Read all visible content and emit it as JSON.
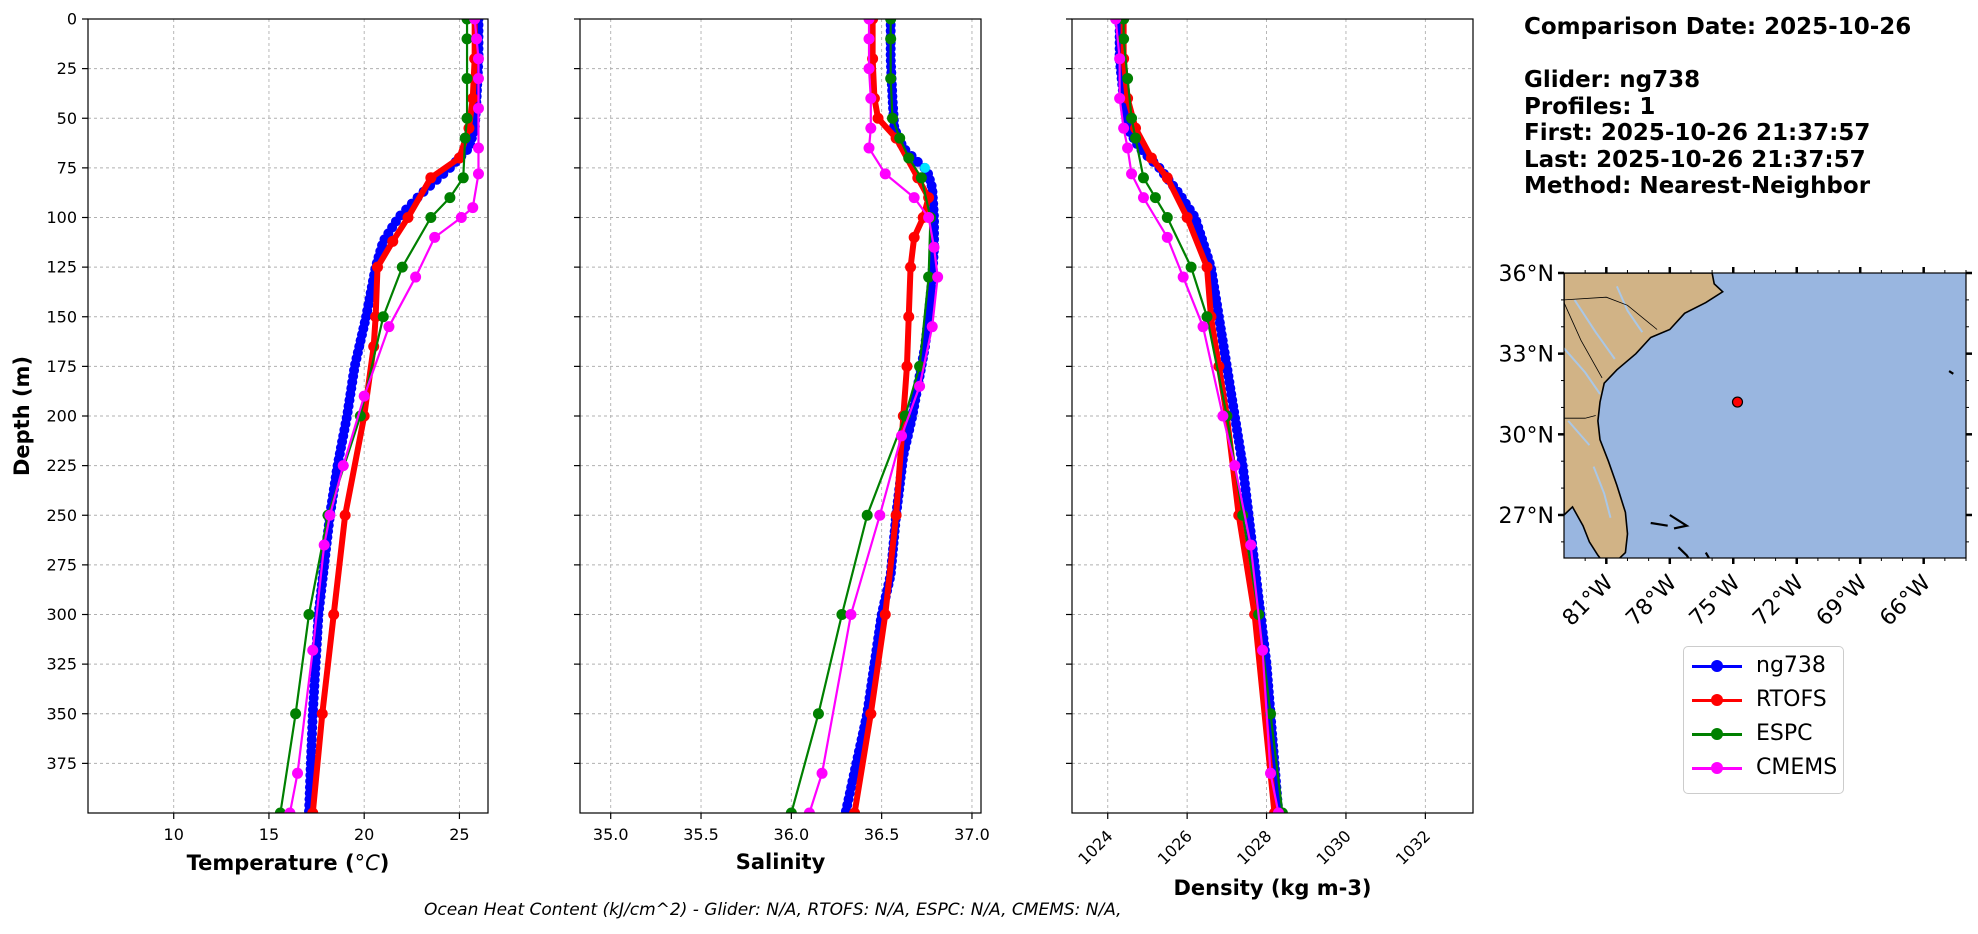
{
  "chart_data": [
    {
      "type": "line",
      "xlabel_main": "Temperature (",
      "xlabel_unit": "°C",
      "xlabel_end": ")",
      "ylabel": "Depth (m)",
      "xlim": [
        5.5,
        26.5
      ],
      "ylim": [
        400,
        0
      ],
      "xticks": [
        10,
        15,
        20,
        25
      ],
      "yticks": [
        0,
        25,
        50,
        75,
        100,
        125,
        150,
        175,
        200,
        225,
        250,
        275,
        300,
        325,
        350,
        375
      ],
      "grid": true,
      "series": [
        {
          "name": "ng738",
          "color": "#0000ff",
          "dense": true,
          "x": [
            26.0,
            26.0,
            25.9,
            25.8,
            25.5,
            24.5,
            23.0,
            21.8,
            21.0,
            20.6,
            20.1,
            19.5,
            19.1,
            18.6,
            18.2,
            17.9,
            17.6,
            17.3,
            17.1
          ],
          "y": [
            0,
            20,
            40,
            55,
            65,
            75,
            88,
            100,
            112,
            125,
            150,
            175,
            200,
            225,
            250,
            275,
            300,
            350,
            400
          ]
        },
        {
          "name": "RTOFS",
          "color": "#ff0000",
          "thick": true,
          "x": [
            25.8,
            25.8,
            25.7,
            25.5,
            25.0,
            23.5,
            22.3,
            21.5,
            20.7,
            20.6,
            20.5,
            20.0,
            19.0,
            18.4,
            17.8,
            17.3
          ],
          "y": [
            0,
            20,
            40,
            55,
            70,
            80,
            100,
            112,
            125,
            150,
            165,
            200,
            250,
            300,
            350,
            400
          ]
        },
        {
          "name": "ESPC",
          "color": "#008000",
          "x": [
            25.4,
            25.4,
            25.4,
            25.4,
            25.3,
            25.2,
            24.5,
            23.5,
            22.0,
            21.0,
            19.8,
            18.1,
            17.1,
            16.4,
            15.6
          ],
          "y": [
            0,
            10,
            30,
            50,
            60,
            80,
            90,
            100,
            125,
            150,
            200,
            250,
            300,
            350,
            400
          ]
        },
        {
          "name": "CMEMS",
          "color": "#ff00ff",
          "x": [
            25.8,
            25.9,
            26.0,
            26.0,
            26.0,
            26.0,
            26.0,
            25.7,
            25.1,
            23.7,
            22.7,
            21.3,
            20.0,
            18.9,
            18.2,
            17.9,
            17.3,
            16.5,
            16.1
          ],
          "y": [
            0,
            10,
            20,
            30,
            45,
            65,
            78,
            95,
            100,
            110,
            130,
            155,
            190,
            225,
            250,
            265,
            318,
            380,
            400
          ]
        }
      ]
    },
    {
      "type": "line",
      "xlabel": "Salinity",
      "xlim": [
        34.83,
        37.05
      ],
      "ylim": [
        400,
        0
      ],
      "xticks": [
        35.0,
        35.5,
        36.0,
        36.5,
        37.0
      ],
      "grid": true,
      "series": [
        {
          "name": "ng738",
          "color": "#0000ff",
          "dense": true,
          "x": [
            36.55,
            36.55,
            36.56,
            36.57,
            36.62,
            36.7,
            36.75,
            36.78,
            36.79,
            36.79,
            36.78,
            36.76,
            36.74,
            36.71,
            36.67,
            36.62,
            36.58,
            36.55,
            36.5,
            36.42,
            36.3
          ],
          "y": [
            0,
            20,
            40,
            55,
            65,
            72,
            76,
            85,
            100,
            115,
            130,
            150,
            165,
            180,
            200,
            220,
            250,
            280,
            300,
            350,
            400
          ]
        },
        {
          "name": "RTOFS",
          "color": "#ff0000",
          "thick": true,
          "x": [
            36.45,
            36.45,
            36.46,
            36.48,
            36.58,
            36.7,
            36.76,
            36.73,
            36.68,
            36.66,
            36.65,
            36.64,
            36.62,
            36.58,
            36.52,
            36.44,
            36.35
          ],
          "y": [
            0,
            20,
            40,
            50,
            60,
            80,
            90,
            100,
            110,
            125,
            150,
            175,
            200,
            250,
            300,
            350,
            400
          ]
        },
        {
          "name": "ESPC",
          "color": "#008000",
          "x": [
            36.55,
            36.55,
            36.55,
            36.56,
            36.6,
            36.65,
            36.72,
            36.77,
            36.76,
            36.71,
            36.63,
            36.42,
            36.28,
            36.15,
            36.0
          ],
          "y": [
            0,
            10,
            30,
            50,
            60,
            70,
            80,
            100,
            130,
            175,
            200,
            250,
            300,
            350,
            400
          ]
        },
        {
          "name": "CMEMS",
          "color": "#ff00ff",
          "x": [
            36.43,
            36.43,
            36.43,
            36.44,
            36.44,
            36.43,
            36.52,
            36.68,
            36.76,
            36.79,
            36.81,
            36.78,
            36.71,
            36.61,
            36.49,
            36.33,
            36.17,
            36.1
          ],
          "y": [
            0,
            10,
            25,
            40,
            55,
            65,
            78,
            90,
            100,
            115,
            130,
            155,
            185,
            210,
            250,
            300,
            380,
            400
          ]
        }
      ],
      "extra_points": [
        {
          "x": 36.74,
          "y": 75,
          "color": "#00e5ff"
        }
      ]
    },
    {
      "type": "line",
      "xlabel": "Density (kg m-3)",
      "xlim": [
        1023.1,
        1033.2
      ],
      "ylim": [
        400,
        0
      ],
      "xticks": [
        1024,
        1026,
        1028,
        1030,
        1032
      ],
      "grid": true,
      "series": [
        {
          "name": "ng738",
          "color": "#0000ff",
          "dense": true,
          "x": [
            1024.3,
            1024.3,
            1024.4,
            1024.5,
            1024.8,
            1025.3,
            1025.8,
            1026.2,
            1026.6,
            1027.0,
            1027.4,
            1027.7,
            1028.0,
            1028.3
          ],
          "y": [
            0,
            20,
            40,
            55,
            65,
            75,
            88,
            100,
            125,
            175,
            225,
            275,
            325,
            400
          ]
        },
        {
          "name": "RTOFS",
          "color": "#ff0000",
          "thick": true,
          "x": [
            1024.4,
            1024.4,
            1024.5,
            1024.7,
            1025.1,
            1025.5,
            1026.0,
            1026.5,
            1026.6,
            1026.8,
            1027.0,
            1027.3,
            1027.7,
            1028.2
          ],
          "y": [
            0,
            20,
            40,
            55,
            70,
            80,
            100,
            125,
            150,
            175,
            200,
            250,
            300,
            400
          ]
        },
        {
          "name": "ESPC",
          "color": "#008000",
          "x": [
            1024.4,
            1024.4,
            1024.5,
            1024.6,
            1024.7,
            1024.9,
            1025.2,
            1025.5,
            1026.1,
            1026.5,
            1027.0,
            1027.4,
            1027.8,
            1028.1,
            1028.4
          ],
          "y": [
            0,
            10,
            30,
            50,
            60,
            80,
            90,
            100,
            125,
            150,
            200,
            250,
            300,
            350,
            400
          ]
        },
        {
          "name": "CMEMS",
          "color": "#ff00ff",
          "x": [
            1024.2,
            1024.3,
            1024.3,
            1024.4,
            1024.5,
            1024.6,
            1024.9,
            1025.5,
            1025.9,
            1026.4,
            1026.9,
            1027.2,
            1027.6,
            1027.9,
            1028.1,
            1028.3
          ],
          "y": [
            0,
            20,
            40,
            55,
            65,
            78,
            90,
            110,
            130,
            155,
            200,
            225,
            265,
            318,
            380,
            400
          ]
        }
      ]
    },
    {
      "type": "map",
      "lat_labels": [
        "36°N",
        "33°N",
        "30°N",
        "27°N"
      ],
      "lat_values": [
        36,
        33,
        30,
        27
      ],
      "lon_labels": [
        "81°W",
        "78°W",
        "75°W",
        "72°W",
        "69°W",
        "66°W"
      ],
      "lon_values": [
        -81,
        -78,
        -75,
        -72,
        -69,
        -66
      ],
      "extent": {
        "lon": [
          -83,
          -64
        ],
        "lat": [
          25.4,
          36
        ]
      },
      "glider_position": {
        "lon": -74.8,
        "lat": 31.2
      },
      "colors": {
        "ocean": "#99b6e0",
        "land": "#d1b386",
        "river": "#aac7e6"
      }
    }
  ],
  "info": {
    "comparison_date": "Comparison Date: 2025-10-26",
    "glider": "Glider: ng738",
    "profiles": "Profiles: 1",
    "first": "First: 2025-10-26 21:37:57",
    "last": "Last: 2025-10-26 21:37:57",
    "method": "Method: Nearest-Neighbor"
  },
  "legend": [
    {
      "label": "ng738",
      "color": "#0000ff"
    },
    {
      "label": "RTOFS",
      "color": "#ff0000"
    },
    {
      "label": "ESPC",
      "color": "#008000"
    },
    {
      "label": "CMEMS",
      "color": "#ff00ff"
    }
  ],
  "footer": "Ocean Heat Content (kJ/cm^2) - Glider: N/A,  RTOFS: N/A,  ESPC: N/A,  CMEMS: N/A,"
}
